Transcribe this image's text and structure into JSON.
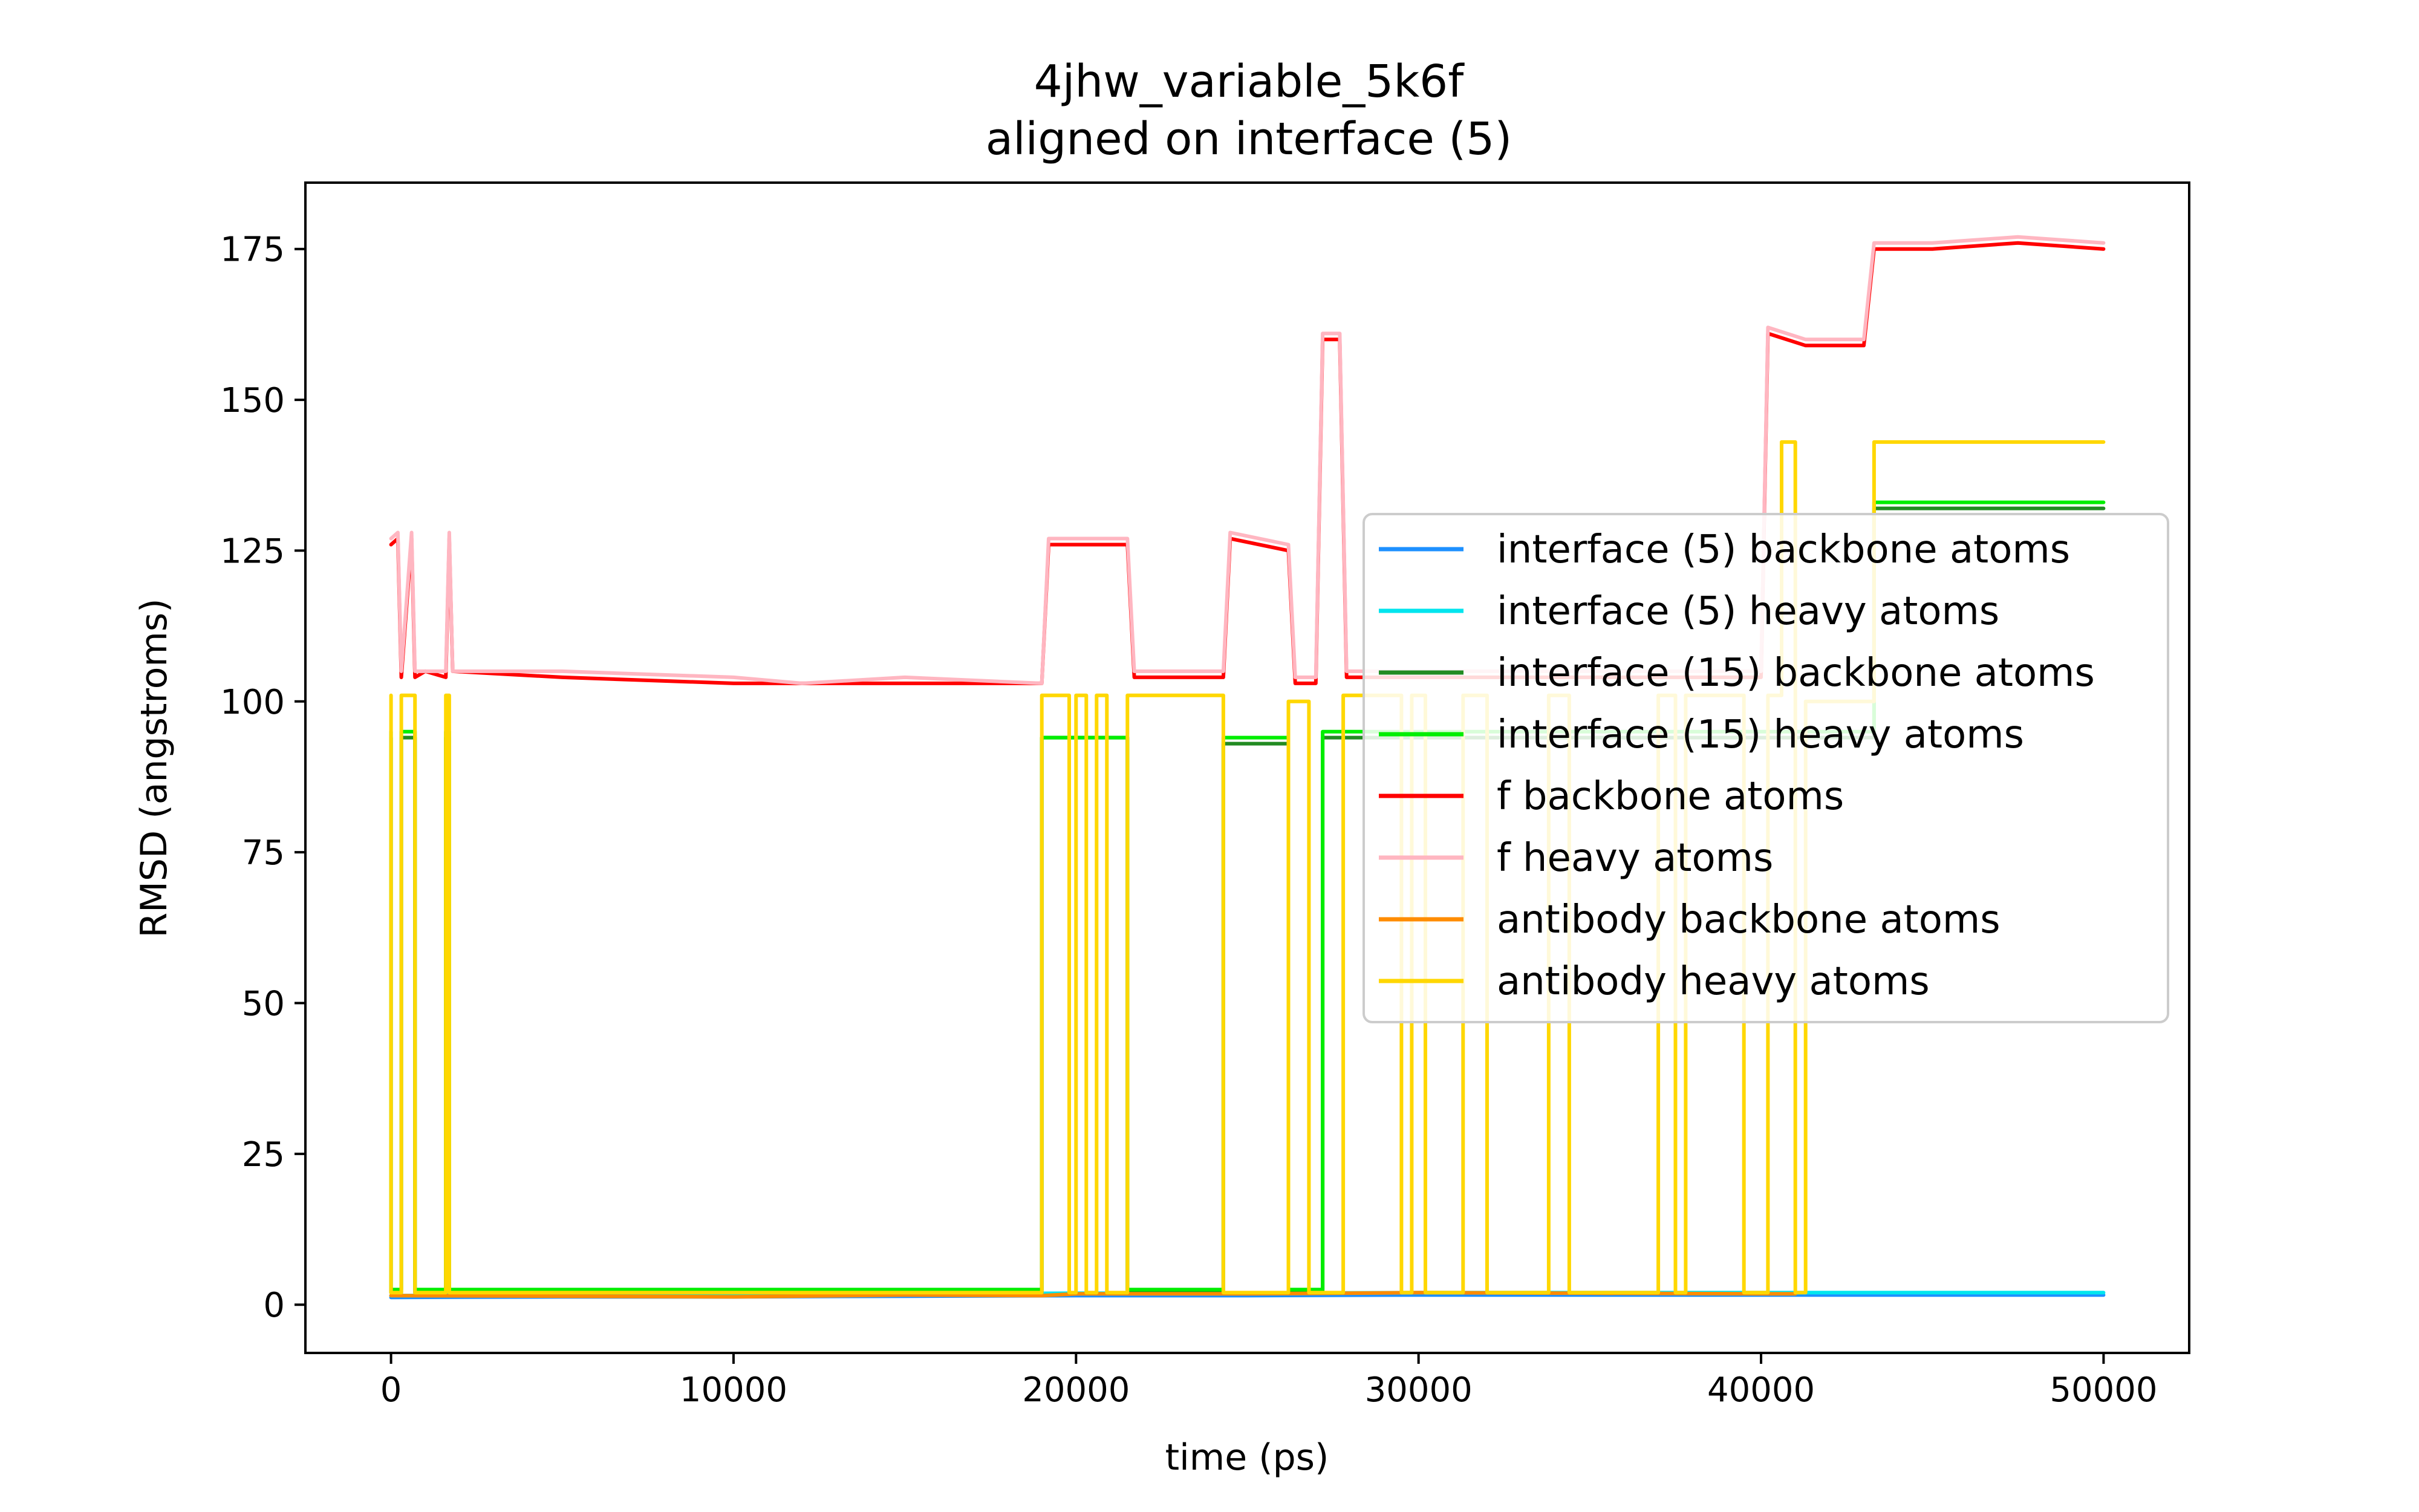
{
  "chart_data": {
    "type": "line",
    "title": "4jhw_variable_5k6f",
    "subtitle": "aligned on interface (5)",
    "xlabel": "time (ps)",
    "ylabel": "RMSD (angstroms)",
    "xlim": [
      -2500,
      52500
    ],
    "ylim": [
      -8,
      186
    ],
    "xticks": [
      0,
      10000,
      20000,
      30000,
      40000,
      50000
    ],
    "yticks": [
      0,
      25,
      50,
      75,
      100,
      125,
      150,
      175
    ],
    "grid": false,
    "legend_position": "center-right",
    "series": [
      {
        "name": "interface (5) backbone atoms",
        "color": "#1e90ff",
        "x": [
          0,
          5000,
          10000,
          15000,
          20000,
          25000,
          30000,
          35000,
          40000,
          45000,
          50000
        ],
        "y": [
          1.2,
          1.3,
          1.3,
          1.4,
          1.5,
          1.5,
          1.6,
          1.6,
          1.6,
          1.6,
          1.6
        ]
      },
      {
        "name": "interface (5) heavy atoms",
        "color": "#00e5ee",
        "x": [
          0,
          5000,
          10000,
          15000,
          20000,
          25000,
          30000,
          35000,
          40000,
          45000,
          50000
        ],
        "y": [
          1.5,
          1.6,
          1.7,
          1.8,
          1.9,
          1.9,
          2.0,
          2.0,
          2.0,
          2.0,
          2.0
        ]
      },
      {
        "name": "interface (15) backbone atoms",
        "color": "#228b22",
        "x": [
          0,
          0,
          300,
          300,
          700,
          700,
          1600,
          1600,
          1700,
          1700,
          19000,
          19000,
          21500,
          21500,
          24300,
          24300,
          26200,
          26200,
          27200,
          27200,
          43300,
          43300,
          50000
        ],
        "y": [
          94,
          2,
          2,
          94,
          94,
          2,
          2,
          94,
          94,
          2,
          2,
          94,
          94,
          2,
          2,
          93,
          93,
          2,
          2,
          94,
          94,
          132,
          132
        ]
      },
      {
        "name": "interface (15) heavy atoms",
        "color": "#00ee00",
        "x": [
          0,
          0,
          300,
          300,
          700,
          700,
          1600,
          1600,
          1700,
          1700,
          19000,
          19000,
          21500,
          21500,
          24300,
          24300,
          26200,
          26200,
          27200,
          27200,
          43300,
          43300,
          50000
        ],
        "y": [
          95,
          2.5,
          2.5,
          95,
          95,
          2.5,
          2.5,
          95,
          95,
          2.5,
          2.5,
          94,
          94,
          2.5,
          2.5,
          94,
          94,
          2.5,
          2.5,
          95,
          95,
          133,
          133
        ]
      },
      {
        "name": "f backbone atoms",
        "color": "#ff0000",
        "x": [
          0,
          200,
          300,
          600,
          700,
          1000,
          1600,
          1700,
          1800,
          5000,
          10000,
          15000,
          19000,
          19200,
          21500,
          21700,
          24300,
          24500,
          26200,
          26400,
          27000,
          27200,
          27700,
          27900,
          40000,
          40200,
          41300,
          43000,
          43300,
          45000,
          47500,
          50000
        ],
        "y": [
          126,
          127,
          104,
          127,
          104,
          105,
          104,
          127,
          105,
          104,
          103,
          103,
          103,
          126,
          126,
          104,
          104,
          127,
          125,
          103,
          103,
          160,
          160,
          104,
          104,
          161,
          159,
          159,
          175,
          175,
          176,
          175
        ]
      },
      {
        "name": "f heavy atoms",
        "color": "#ffb6c1",
        "x": [
          0,
          200,
          300,
          600,
          700,
          1000,
          1600,
          1700,
          1800,
          5000,
          10000,
          12000,
          15000,
          19000,
          19200,
          21500,
          21700,
          24300,
          24500,
          26200,
          26400,
          27000,
          27200,
          27700,
          27900,
          40000,
          40200,
          41300,
          43000,
          43300,
          45000,
          47500,
          50000
        ],
        "y": [
          127,
          128,
          105,
          128,
          105,
          105,
          105,
          128,
          105,
          105,
          104,
          103,
          104,
          103,
          127,
          127,
          105,
          105,
          128,
          126,
          104,
          104,
          161,
          161,
          105,
          105,
          162,
          160,
          160,
          176,
          176,
          177,
          176
        ]
      },
      {
        "name": "antibody backbone atoms",
        "color": "#ff8c00",
        "x": [
          0,
          5000,
          10000,
          15000,
          19000,
          20000,
          25000,
          30000,
          35000,
          40000,
          41000
        ],
        "y": [
          1.5,
          1.4,
          1.3,
          1.6,
          1.5,
          1.8,
          1.8,
          2.0,
          1.9,
          1.8,
          1.8
        ]
      },
      {
        "name": "antibody heavy atoms",
        "color": "#ffd700",
        "x": [
          0,
          0,
          300,
          300,
          700,
          700,
          1600,
          1600,
          1700,
          1700,
          19000,
          19000,
          19800,
          19800,
          20000,
          20000,
          20300,
          20300,
          20600,
          20600,
          20900,
          20900,
          21500,
          21500,
          24300,
          24300,
          26200,
          26200,
          26800,
          26800,
          27800,
          27800,
          29500,
          29500,
          29800,
          29800,
          30200,
          30200,
          31300,
          31300,
          32000,
          32000,
          33800,
          33800,
          34400,
          34400,
          37000,
          37000,
          37500,
          37500,
          37800,
          37800,
          39500,
          39500,
          40200,
          40200,
          40600,
          40600,
          41000,
          41000,
          41300,
          41300,
          43300,
          43300,
          50000
        ],
        "y": [
          101,
          2,
          2,
          101,
          101,
          2,
          2,
          101,
          101,
          2,
          2,
          101,
          101,
          2,
          2,
          101,
          101,
          2,
          2,
          101,
          101,
          2,
          2,
          101,
          101,
          2,
          2,
          100,
          100,
          2,
          2,
          101,
          101,
          2,
          2,
          101,
          101,
          2,
          2,
          101,
          101,
          2,
          2,
          101,
          101,
          2,
          2,
          101,
          101,
          2,
          2,
          101,
          101,
          2,
          2,
          101,
          101,
          143,
          143,
          2,
          2,
          100,
          100,
          143,
          143
        ]
      }
    ]
  }
}
